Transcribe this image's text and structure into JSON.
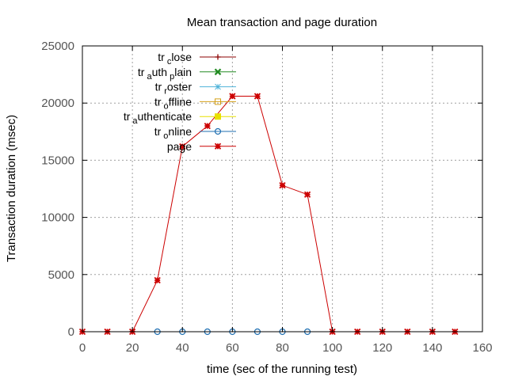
{
  "chart_data": {
    "type": "line",
    "title": "Mean transaction and page duration",
    "xlabel": "time (sec of the running test)",
    "ylabel": "Transaction duration (msec)",
    "xlim": [
      0,
      160
    ],
    "ylim": [
      0,
      25000
    ],
    "xticks": [
      0,
      20,
      40,
      60,
      80,
      100,
      120,
      140,
      160
    ],
    "yticks": [
      0,
      5000,
      10000,
      15000,
      20000,
      25000
    ],
    "grid": true,
    "legend_position": "top-left",
    "series": [
      {
        "name": "tr_close",
        "label_parts": [
          [
            "tr",
            "base"
          ],
          [
            "c",
            "sub"
          ],
          [
            "lose",
            "base"
          ]
        ],
        "color": "#8b0000",
        "marker": "plus",
        "x": [],
        "y": []
      },
      {
        "name": "tr_auth_plain",
        "label_parts": [
          [
            "tr",
            "base"
          ],
          [
            "a",
            "sub"
          ],
          [
            "uth",
            "base"
          ],
          [
            "p",
            "sub"
          ],
          [
            "lain",
            "base"
          ]
        ],
        "color": "#228b22",
        "marker": "x-bold",
        "x": [],
        "y": []
      },
      {
        "name": "tr_roster",
        "label_parts": [
          [
            "tr",
            "base"
          ],
          [
            "r",
            "sub"
          ],
          [
            "oster",
            "base"
          ]
        ],
        "color": "#4fb3d9",
        "marker": "star",
        "x": [],
        "y": []
      },
      {
        "name": "tr_offline",
        "label_parts": [
          [
            "tr",
            "base"
          ],
          [
            "o",
            "sub"
          ],
          [
            "ffline",
            "base"
          ]
        ],
        "color": "#d4a017",
        "marker": "square",
        "x": [],
        "y": []
      },
      {
        "name": "tr_authenticate",
        "label_parts": [
          [
            "tr",
            "base"
          ],
          [
            "a",
            "sub"
          ],
          [
            "uthenticate",
            "base"
          ]
        ],
        "color": "#e8e000",
        "marker": "filled-square",
        "x": [],
        "y": []
      },
      {
        "name": "tr_online",
        "label_parts": [
          [
            "tr",
            "base"
          ],
          [
            "o",
            "sub"
          ],
          [
            "nline",
            "base"
          ]
        ],
        "color": "#1f6fb2",
        "marker": "circle",
        "x": [
          30,
          40,
          50,
          60,
          70,
          80,
          90
        ],
        "y": [
          0,
          0,
          0,
          0,
          0,
          0,
          0
        ]
      },
      {
        "name": "page",
        "label_parts": [
          [
            "page",
            "base"
          ]
        ],
        "color": "#cc0000",
        "marker": "filled-star",
        "x": [
          0,
          10,
          20,
          30,
          40,
          50,
          60,
          70,
          80,
          90,
          100,
          110,
          120,
          130,
          140,
          149
        ],
        "y": [
          0,
          0,
          0,
          4500,
          16200,
          18000,
          20600,
          20600,
          12800,
          12000,
          0,
          0,
          0,
          0,
          0,
          0
        ]
      }
    ]
  }
}
